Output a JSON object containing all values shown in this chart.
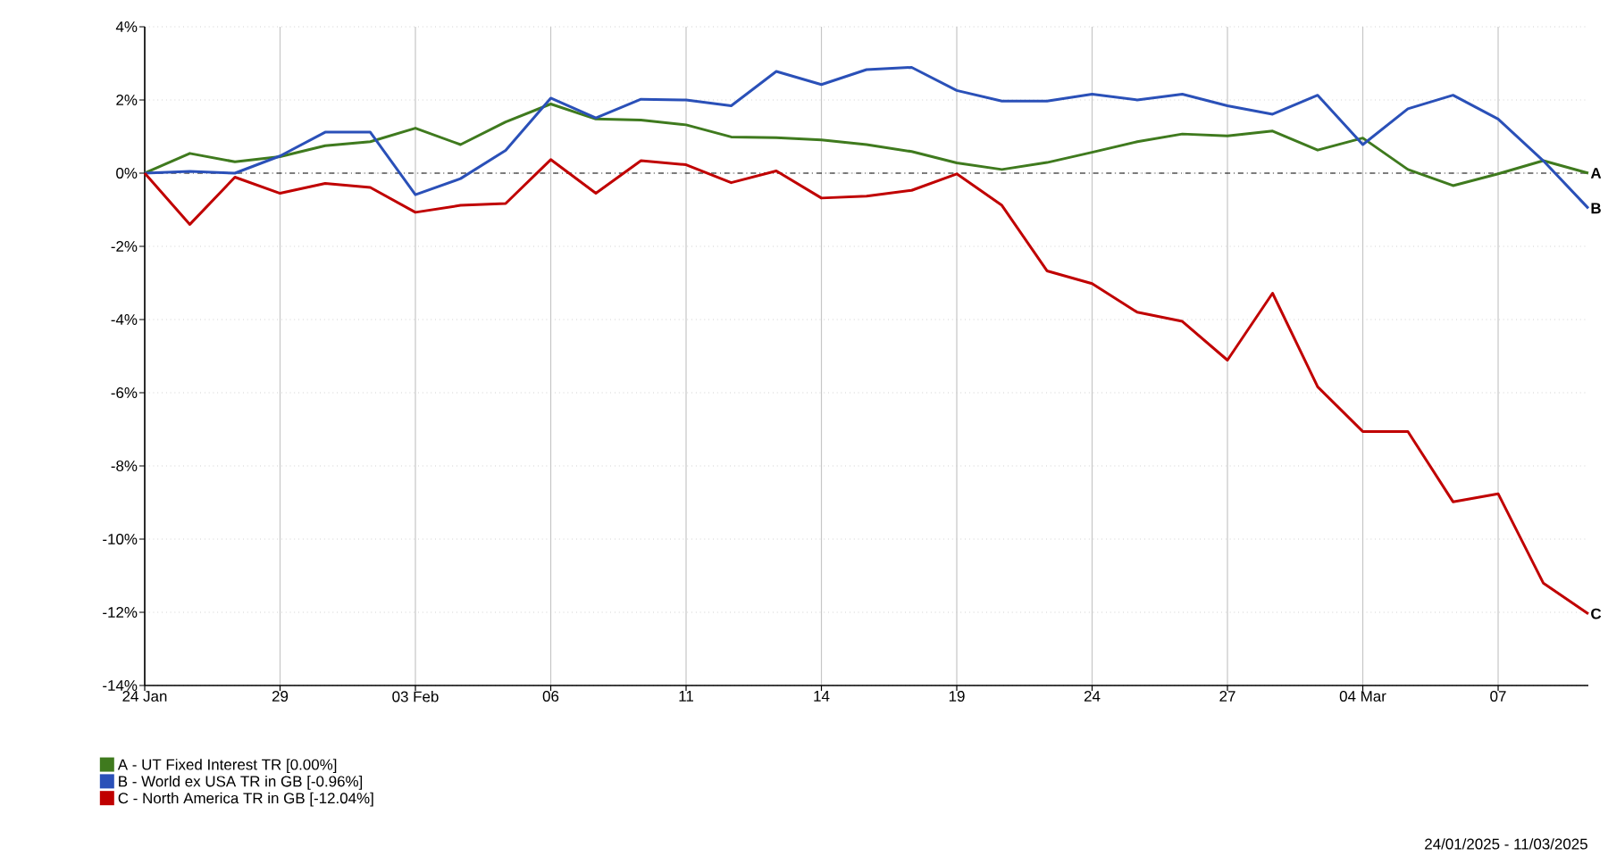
{
  "chart_data": {
    "type": "line",
    "categories": [
      "24 Jan",
      null,
      null,
      "29",
      null,
      null,
      "03 Feb",
      null,
      null,
      "06",
      null,
      null,
      "11",
      null,
      null,
      "14",
      null,
      null,
      "19",
      null,
      null,
      "24",
      null,
      null,
      "27",
      null,
      null,
      "04 Mar",
      null,
      null,
      "07",
      null,
      null
    ],
    "series": [
      {
        "name": "A - UT Fixed Interest TR [0.00%]",
        "color": "#3f7a1e",
        "values": [
          0,
          0.54,
          0.31,
          0.45,
          0.75,
          0.86,
          1.23,
          0.78,
          1.4,
          1.89,
          1.48,
          1.45,
          1.32,
          0.99,
          0.97,
          0.91,
          0.78,
          0.59,
          0.28,
          0.1,
          0.29,
          0.57,
          0.86,
          1.07,
          1.02,
          1.15,
          0.63,
          0.96,
          0.1,
          -0.34,
          -0.02,
          0.34,
          0.0
        ]
      },
      {
        "name": "B - World ex USA TR in GB [-0.96%]",
        "color": "#2a50b8",
        "values": [
          0,
          0.05,
          0,
          0.47,
          1.12,
          1.12,
          -0.59,
          -0.15,
          0.62,
          2.05,
          1.51,
          2.02,
          2.0,
          1.84,
          2.78,
          2.42,
          2.83,
          2.89,
          2.26,
          1.97,
          1.97,
          2.16,
          2.0,
          2.16,
          1.84,
          1.61,
          2.13,
          0.78,
          1.76,
          2.13,
          1.48,
          0.34,
          -0.96
        ]
      },
      {
        "name": "C - North America TR in GB [-12.04%]",
        "color": "#c00000",
        "values": [
          0,
          -1.4,
          -0.11,
          -0.55,
          -0.28,
          -0.39,
          -1.07,
          -0.88,
          -0.83,
          0.37,
          -0.55,
          0.34,
          0.23,
          -0.26,
          0.06,
          -0.68,
          -0.63,
          -0.47,
          -0.02,
          -0.88,
          -2.67,
          -3.02,
          -3.8,
          -4.05,
          -5.11,
          -3.28,
          -5.84,
          -7.06,
          -7.06,
          -8.98,
          -8.76,
          -11.2,
          -12.04
        ]
      }
    ],
    "ylim": [
      -14,
      4
    ],
    "yticks": [
      {
        "value": -14,
        "label": "-14%"
      },
      {
        "value": -12,
        "label": "-12%"
      },
      {
        "value": -10,
        "label": "-10%"
      },
      {
        "value": -8,
        "label": "-8%"
      },
      {
        "value": -6,
        "label": "-6%"
      },
      {
        "value": -4,
        "label": "-4%"
      },
      {
        "value": -2,
        "label": "-2%"
      },
      {
        "value": 0,
        "label": "0%"
      },
      {
        "value": 2,
        "label": "2%"
      },
      {
        "value": 4,
        "label": "4%"
      }
    ],
    "ref_lines": [
      {
        "axis": "y",
        "value": 0,
        "color": "#000000",
        "line_style": "dashdotted"
      }
    ],
    "annotations": [
      {
        "text": "A",
        "y": 0.0
      },
      {
        "text": "B",
        "y": -0.96
      },
      {
        "text": "C",
        "y": -12.04
      },
      "24/01/2025 - 11/03/2025"
    ],
    "grid": true,
    "legend": "bottom",
    "marker": "none",
    "line_style": "solid"
  }
}
